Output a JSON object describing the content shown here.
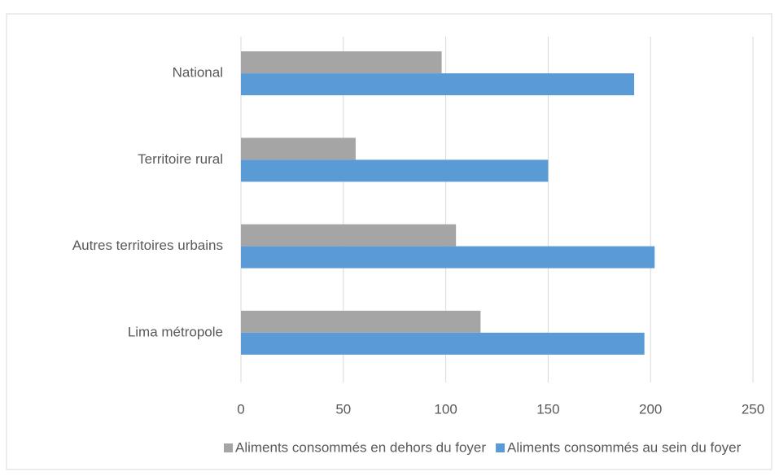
{
  "chart_data": {
    "type": "hbar",
    "categories": [
      "National",
      "Territoire rural",
      "Autres territoires urbains",
      "Lima métropole"
    ],
    "series": [
      {
        "name": "Aliments consommés en dehors du foyer",
        "color": "#a5a5a5",
        "values": [
          98,
          56,
          105,
          117
        ]
      },
      {
        "name": "Aliments consommés au sein du foyer",
        "color": "#5b9bd5",
        "values": [
          192,
          150,
          202,
          197
        ]
      }
    ],
    "xlim": [
      0,
      250
    ],
    "xticks": [
      0,
      50,
      100,
      150,
      200,
      250
    ],
    "grid": true
  }
}
